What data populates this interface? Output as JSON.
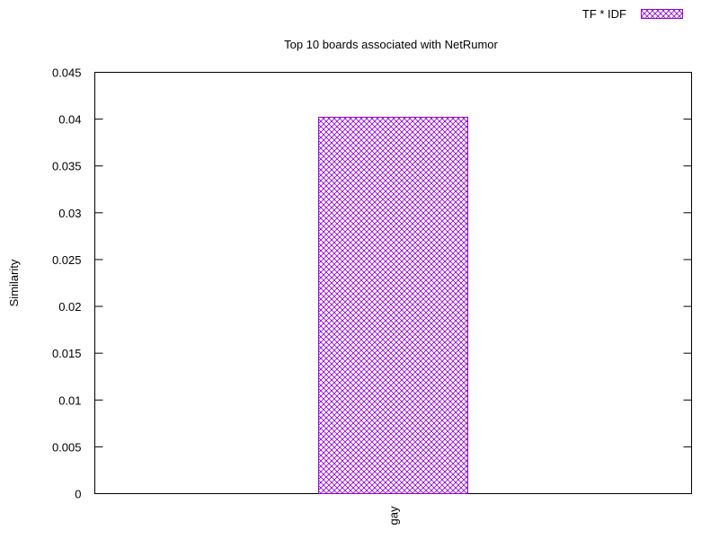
{
  "chart_data": {
    "type": "bar",
    "title": "Top 10 boards associated with NetRumor",
    "xlabel": "",
    "ylabel": "Similarity",
    "categories": [
      "gay"
    ],
    "series": [
      {
        "name": "TF * IDF",
        "values": [
          0.0402
        ],
        "color": "#9400d3",
        "pattern": "crosshatch"
      }
    ],
    "ylim": [
      0,
      0.045
    ],
    "yticks": [
      "0",
      "0.005",
      "0.01",
      "0.015",
      "0.02",
      "0.025",
      "0.03",
      "0.035",
      "0.04",
      "0.045"
    ],
    "grid": false,
    "legend_position": "top-right"
  }
}
